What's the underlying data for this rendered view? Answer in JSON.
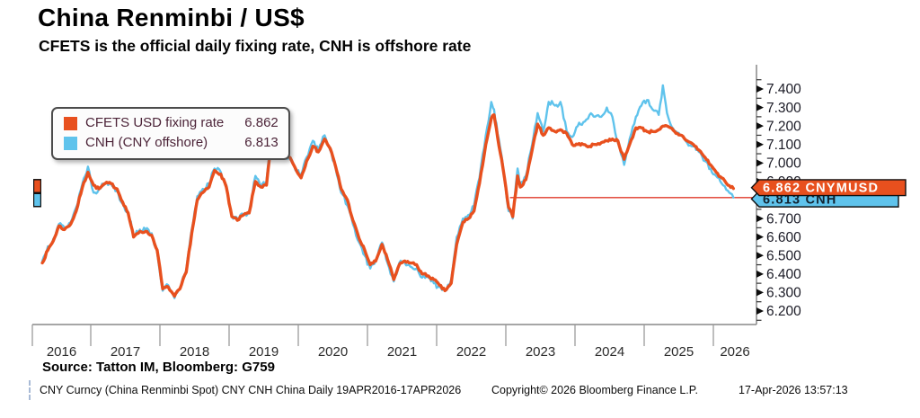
{
  "page": {
    "title": "China Renminbi / US$",
    "subtitle": "CFETS is the official daily fixing rate, CNH is offshore rate",
    "source_line": "Source: Tatton IM, Bloomberg: G759",
    "footer": {
      "ticker_info": "CNY Curncy (China Renminbi Spot) CNY CNH China Daily 19APR2016-17APR2026",
      "copyright": "Copyright© 2026 Bloomberg Finance L.P.",
      "timestamp": "17-Apr-2026 13:57:13"
    }
  },
  "legend": {
    "items": [
      {
        "label": "CFETS USD fixing rate",
        "value": "6.862",
        "color": "#e8501e"
      },
      {
        "label": "CNH (CNY offshore)",
        "value": "6.813",
        "color": "#5fc3ec"
      }
    ]
  },
  "chart_data": {
    "type": "line",
    "title": "China Renminbi / US$",
    "subtitle": "CFETS is the official daily fixing rate, CNH is offshore rate",
    "x_axis": {
      "labels": [
        "2016",
        "2017",
        "2018",
        "2019",
        "2020",
        "2021",
        "2022",
        "2023",
        "2024",
        "2025",
        "2026"
      ],
      "year_start_ticks": [
        2017,
        2018,
        2019,
        2020,
        2021,
        2022,
        2023,
        2024,
        2025,
        2026
      ],
      "range": "19APR2016-17APR2026"
    },
    "y_axis": {
      "side": "right",
      "ticks": [
        "6.200",
        "6.300",
        "6.400",
        "6.500",
        "6.600",
        "6.700",
        "6.800",
        "6.900",
        "7.000",
        "7.100",
        "7.200",
        "7.300",
        "7.400"
      ],
      "minor_step": 0.05,
      "min": 6.2,
      "max": 7.4
    },
    "series": [
      {
        "name": "CFETS USD fixing rate",
        "ticker": "CNYMUSD",
        "color": "#e8501e",
        "last": 6.862,
        "points": [
          [
            2016.3,
            6.46
          ],
          [
            2016.38,
            6.53
          ],
          [
            2016.46,
            6.58
          ],
          [
            2016.54,
            6.66
          ],
          [
            2016.62,
            6.64
          ],
          [
            2016.71,
            6.67
          ],
          [
            2016.79,
            6.74
          ],
          [
            2016.88,
            6.87
          ],
          [
            2016.96,
            6.95
          ],
          [
            2017.04,
            6.88
          ],
          [
            2017.12,
            6.86
          ],
          [
            2017.21,
            6.89
          ],
          [
            2017.29,
            6.89
          ],
          [
            2017.38,
            6.86
          ],
          [
            2017.46,
            6.79
          ],
          [
            2017.54,
            6.73
          ],
          [
            2017.62,
            6.6
          ],
          [
            2017.71,
            6.63
          ],
          [
            2017.79,
            6.63
          ],
          [
            2017.88,
            6.61
          ],
          [
            2017.96,
            6.53
          ],
          [
            2018.04,
            6.32
          ],
          [
            2018.12,
            6.33
          ],
          [
            2018.21,
            6.28
          ],
          [
            2018.29,
            6.32
          ],
          [
            2018.38,
            6.41
          ],
          [
            2018.46,
            6.62
          ],
          [
            2018.54,
            6.8
          ],
          [
            2018.62,
            6.84
          ],
          [
            2018.71,
            6.87
          ],
          [
            2018.79,
            6.96
          ],
          [
            2018.88,
            6.94
          ],
          [
            2018.96,
            6.87
          ],
          [
            2019.04,
            6.71
          ],
          [
            2019.12,
            6.69
          ],
          [
            2019.21,
            6.72
          ],
          [
            2019.29,
            6.73
          ],
          [
            2019.38,
            6.9
          ],
          [
            2019.46,
            6.87
          ],
          [
            2019.54,
            6.88
          ],
          [
            2019.62,
            7.15
          ],
          [
            2019.71,
            7.17
          ],
          [
            2019.79,
            7.06
          ],
          [
            2019.88,
            7.03
          ],
          [
            2019.96,
            6.97
          ],
          [
            2020.04,
            6.92
          ],
          [
            2020.12,
            7.01
          ],
          [
            2020.21,
            7.09
          ],
          [
            2020.29,
            7.06
          ],
          [
            2020.38,
            7.13
          ],
          [
            2020.46,
            7.08
          ],
          [
            2020.54,
            6.98
          ],
          [
            2020.62,
            6.86
          ],
          [
            2020.71,
            6.8
          ],
          [
            2020.79,
            6.69
          ],
          [
            2020.88,
            6.59
          ],
          [
            2020.96,
            6.53
          ],
          [
            2021.04,
            6.45
          ],
          [
            2021.12,
            6.47
          ],
          [
            2021.21,
            6.56
          ],
          [
            2021.29,
            6.48
          ],
          [
            2021.38,
            6.37
          ],
          [
            2021.46,
            6.45
          ],
          [
            2021.54,
            6.47
          ],
          [
            2021.62,
            6.46
          ],
          [
            2021.71,
            6.45
          ],
          [
            2021.79,
            6.4
          ],
          [
            2021.88,
            6.39
          ],
          [
            2021.96,
            6.37
          ],
          [
            2022.04,
            6.34
          ],
          [
            2022.12,
            6.31
          ],
          [
            2022.21,
            6.35
          ],
          [
            2022.29,
            6.56
          ],
          [
            2022.38,
            6.68
          ],
          [
            2022.46,
            6.7
          ],
          [
            2022.54,
            6.74
          ],
          [
            2022.62,
            6.89
          ],
          [
            2022.71,
            7.1
          ],
          [
            2022.79,
            7.24
          ],
          [
            2022.83,
            7.26
          ],
          [
            2022.88,
            7.14
          ],
          [
            2022.96,
            6.97
          ],
          [
            2023.04,
            6.76
          ],
          [
            2023.1,
            6.71
          ],
          [
            2023.17,
            6.93
          ],
          [
            2023.21,
            6.87
          ],
          [
            2023.29,
            6.91
          ],
          [
            2023.38,
            7.07
          ],
          [
            2023.46,
            7.21
          ],
          [
            2023.54,
            7.15
          ],
          [
            2023.62,
            7.19
          ],
          [
            2023.71,
            7.17
          ],
          [
            2023.79,
            7.18
          ],
          [
            2023.88,
            7.16
          ],
          [
            2023.96,
            7.1
          ],
          [
            2024.04,
            7.1
          ],
          [
            2024.12,
            7.1
          ],
          [
            2024.21,
            7.09
          ],
          [
            2024.29,
            7.1
          ],
          [
            2024.38,
            7.11
          ],
          [
            2024.46,
            7.12
          ],
          [
            2024.54,
            7.13
          ],
          [
            2024.62,
            7.12
          ],
          [
            2024.71,
            7.02
          ],
          [
            2024.79,
            7.1
          ],
          [
            2024.88,
            7.19
          ],
          [
            2024.96,
            7.19
          ],
          [
            2025.04,
            7.17
          ],
          [
            2025.12,
            7.17
          ],
          [
            2025.21,
            7.18
          ],
          [
            2025.29,
            7.2
          ],
          [
            2025.38,
            7.19
          ],
          [
            2025.46,
            7.16
          ],
          [
            2025.54,
            7.15
          ],
          [
            2025.62,
            7.12
          ],
          [
            2025.71,
            7.1
          ],
          [
            2025.79,
            7.07
          ],
          [
            2025.88,
            7.03
          ],
          [
            2025.96,
            6.99
          ],
          [
            2026.04,
            6.95
          ],
          [
            2026.12,
            6.92
          ],
          [
            2026.21,
            6.88
          ],
          [
            2026.29,
            6.862
          ]
        ]
      },
      {
        "name": "CNH (CNY offshore)",
        "ticker": "CNH",
        "color": "#5fc3ec",
        "last": 6.813,
        "points": [
          [
            2016.3,
            6.47
          ],
          [
            2016.38,
            6.55
          ],
          [
            2016.46,
            6.59
          ],
          [
            2016.54,
            6.67
          ],
          [
            2016.62,
            6.65
          ],
          [
            2016.71,
            6.68
          ],
          [
            2016.79,
            6.76
          ],
          [
            2016.88,
            6.89
          ],
          [
            2016.96,
            6.98
          ],
          [
            2017.04,
            6.84
          ],
          [
            2017.12,
            6.86
          ],
          [
            2017.21,
            6.89
          ],
          [
            2017.29,
            6.89
          ],
          [
            2017.38,
            6.85
          ],
          [
            2017.46,
            6.78
          ],
          [
            2017.54,
            6.73
          ],
          [
            2017.62,
            6.61
          ],
          [
            2017.71,
            6.64
          ],
          [
            2017.79,
            6.64
          ],
          [
            2017.88,
            6.62
          ],
          [
            2017.96,
            6.52
          ],
          [
            2018.04,
            6.31
          ],
          [
            2018.12,
            6.34
          ],
          [
            2018.21,
            6.27
          ],
          [
            2018.29,
            6.32
          ],
          [
            2018.38,
            6.42
          ],
          [
            2018.46,
            6.64
          ],
          [
            2018.54,
            6.82
          ],
          [
            2018.62,
            6.86
          ],
          [
            2018.71,
            6.89
          ],
          [
            2018.79,
            6.97
          ],
          [
            2018.88,
            6.95
          ],
          [
            2018.96,
            6.88
          ],
          [
            2019.04,
            6.71
          ],
          [
            2019.12,
            6.7
          ],
          [
            2019.21,
            6.72
          ],
          [
            2019.29,
            6.74
          ],
          [
            2019.38,
            6.93
          ],
          [
            2019.46,
            6.87
          ],
          [
            2019.54,
            6.9
          ],
          [
            2019.62,
            7.17
          ],
          [
            2019.71,
            7.16
          ],
          [
            2019.79,
            7.05
          ],
          [
            2019.88,
            7.02
          ],
          [
            2019.96,
            6.96
          ],
          [
            2020.04,
            6.94
          ],
          [
            2020.12,
            7.03
          ],
          [
            2020.21,
            7.12
          ],
          [
            2020.29,
            7.07
          ],
          [
            2020.38,
            7.15
          ],
          [
            2020.46,
            7.07
          ],
          [
            2020.54,
            6.97
          ],
          [
            2020.62,
            6.84
          ],
          [
            2020.71,
            6.77
          ],
          [
            2020.79,
            6.67
          ],
          [
            2020.88,
            6.57
          ],
          [
            2020.96,
            6.5
          ],
          [
            2021.04,
            6.43
          ],
          [
            2021.12,
            6.47
          ],
          [
            2021.21,
            6.57
          ],
          [
            2021.29,
            6.46
          ],
          [
            2021.38,
            6.36
          ],
          [
            2021.46,
            6.46
          ],
          [
            2021.54,
            6.46
          ],
          [
            2021.62,
            6.44
          ],
          [
            2021.71,
            6.43
          ],
          [
            2021.79,
            6.38
          ],
          [
            2021.88,
            6.38
          ],
          [
            2021.96,
            6.35
          ],
          [
            2022.04,
            6.33
          ],
          [
            2022.12,
            6.31
          ],
          [
            2022.21,
            6.37
          ],
          [
            2022.29,
            6.6
          ],
          [
            2022.38,
            6.7
          ],
          [
            2022.46,
            6.72
          ],
          [
            2022.54,
            6.77
          ],
          [
            2022.62,
            6.92
          ],
          [
            2022.71,
            7.15
          ],
          [
            2022.79,
            7.33
          ],
          [
            2022.83,
            7.29
          ],
          [
            2022.88,
            7.16
          ],
          [
            2022.96,
            6.98
          ],
          [
            2023.04,
            6.74
          ],
          [
            2023.1,
            6.7
          ],
          [
            2023.17,
            6.97
          ],
          [
            2023.21,
            6.88
          ],
          [
            2023.29,
            6.93
          ],
          [
            2023.38,
            7.1
          ],
          [
            2023.46,
            7.27
          ],
          [
            2023.54,
            7.17
          ],
          [
            2023.62,
            7.33
          ],
          [
            2023.71,
            7.31
          ],
          [
            2023.79,
            7.33
          ],
          [
            2023.88,
            7.17
          ],
          [
            2023.96,
            7.14
          ],
          [
            2024.04,
            7.2
          ],
          [
            2024.12,
            7.22
          ],
          [
            2024.21,
            7.26
          ],
          [
            2024.29,
            7.25
          ],
          [
            2024.38,
            7.25
          ],
          [
            2024.46,
            7.3
          ],
          [
            2024.54,
            7.25
          ],
          [
            2024.62,
            7.11
          ],
          [
            2024.71,
            6.99
          ],
          [
            2024.79,
            7.13
          ],
          [
            2024.88,
            7.25
          ],
          [
            2024.96,
            7.31
          ],
          [
            2025.04,
            7.34
          ],
          [
            2025.12,
            7.29
          ],
          [
            2025.21,
            7.26
          ],
          [
            2025.27,
            7.42
          ],
          [
            2025.33,
            7.27
          ],
          [
            2025.38,
            7.21
          ],
          [
            2025.46,
            7.17
          ],
          [
            2025.54,
            7.15
          ],
          [
            2025.62,
            7.11
          ],
          [
            2025.71,
            7.09
          ],
          [
            2025.79,
            7.06
          ],
          [
            2025.88,
            7.01
          ],
          [
            2025.96,
            6.97
          ],
          [
            2026.04,
            6.93
          ],
          [
            2026.12,
            6.89
          ],
          [
            2026.21,
            6.85
          ],
          [
            2026.29,
            6.813
          ]
        ]
      }
    ],
    "price_flags": [
      {
        "label": "6.862 CNYMUSD",
        "value": 6.862,
        "bg": "#e8501e",
        "fg": "#ffffff"
      },
      {
        "label": "6.813 CNH",
        "value": 6.813,
        "bg": "#5fc3ec",
        "fg": "#122330"
      }
    ],
    "tracking_line": {
      "value": 6.813,
      "start_year": 2023.06,
      "color": "#e03a2a"
    },
    "edge_markers": [
      {
        "value": 6.875,
        "color": "#e8501e"
      },
      {
        "value": 6.8,
        "color": "#5fc3ec"
      }
    ],
    "jitter": {
      "cfets": 0.008,
      "cnh": 0.016
    },
    "legend_position": "top-left",
    "grid": false
  }
}
